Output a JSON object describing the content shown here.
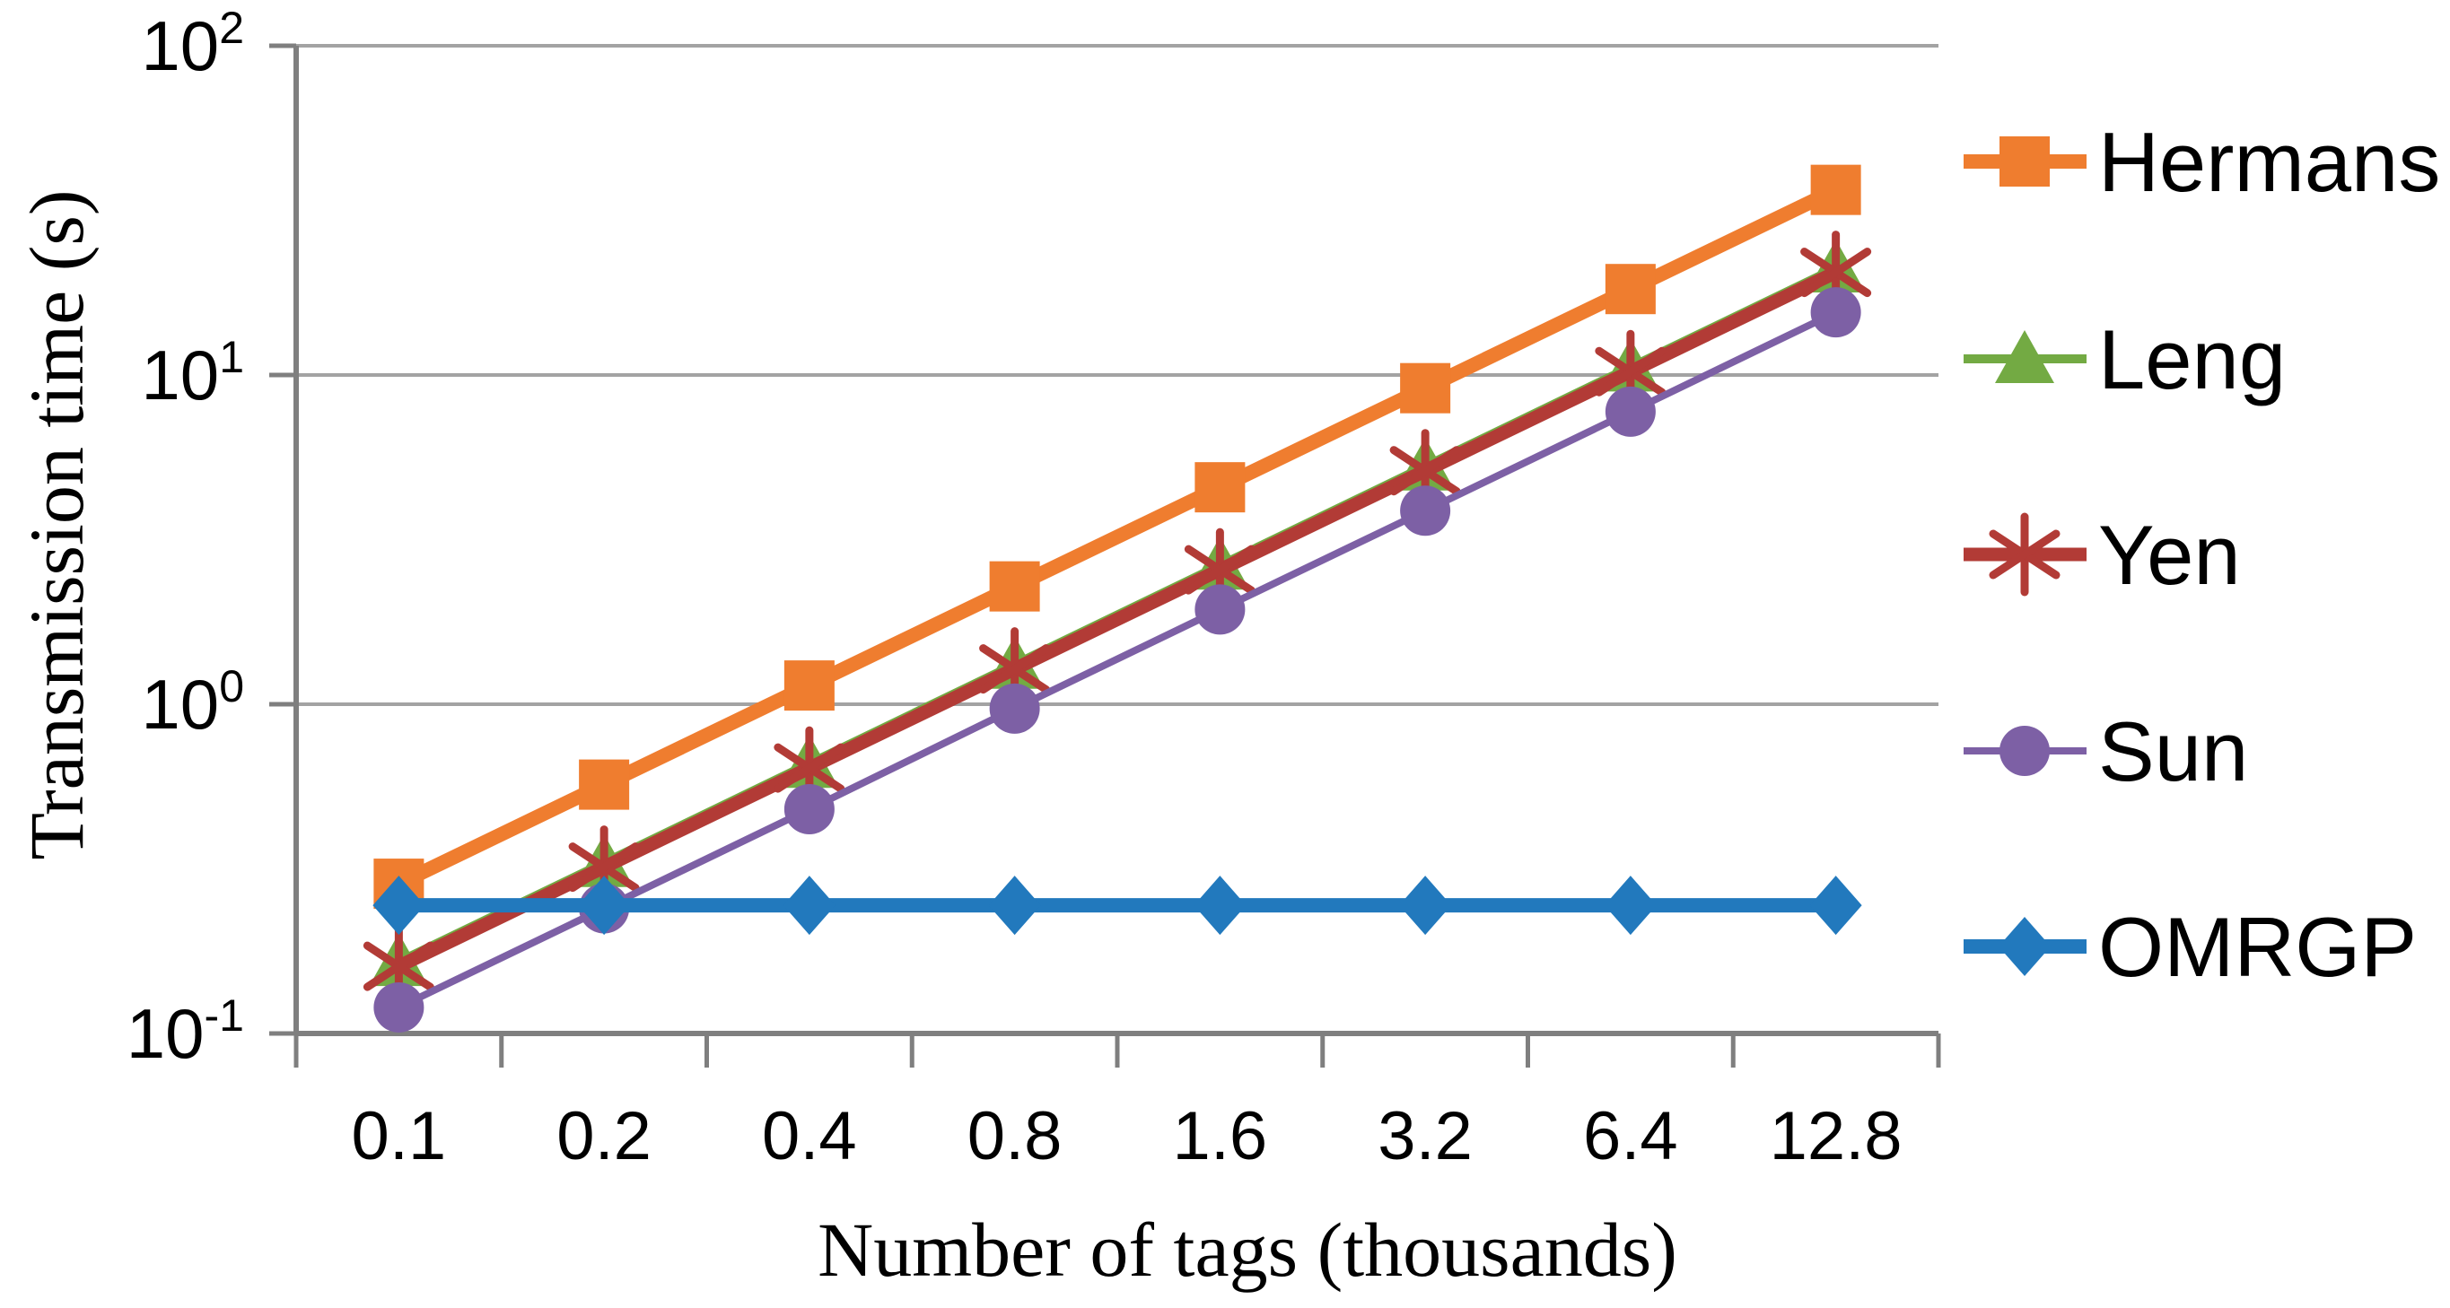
{
  "figure": {
    "background_color": "#ffffff",
    "text_color": "#000000",
    "axis_color": "#7F7F7F",
    "grid_color": "#A3A3A3"
  },
  "chart_data": {
    "type": "line",
    "title": "",
    "xlabel": "Number of tags (thousands)",
    "ylabel": "Transmission time (s)",
    "grid": "horizontal",
    "legend_position": "right",
    "x_axis": {
      "scale": "category",
      "categories": [
        "0.1",
        "0.2",
        "0.4",
        "0.8",
        "1.6",
        "3.2",
        "6.4",
        "12.8"
      ]
    },
    "y_axis": {
      "scale": "log",
      "min": 0.1,
      "max": 100,
      "ticks": [
        {
          "label": "10^2",
          "value": 100
        },
        {
          "label": "10^1",
          "value": 10
        },
        {
          "label": "10^0",
          "value": 1
        },
        {
          "label": "10^-1",
          "value": 0.1
        }
      ]
    },
    "series": [
      {
        "name": "Hermans",
        "color": "#EF7D2F",
        "marker": "square",
        "line_width": 16,
        "values": [
          0.285,
          0.57,
          1.14,
          2.28,
          4.56,
          9.12,
          18.24,
          36.5
        ]
      },
      {
        "name": "Leng",
        "color": "#73AA43",
        "marker": "triangle",
        "line_width": 10,
        "values": [
          0.165,
          0.33,
          0.66,
          1.32,
          2.64,
          5.28,
          10.56,
          21.1
        ]
      },
      {
        "name": "Yen",
        "color": "#B23B36",
        "marker": "asterisk",
        "line_width": 15,
        "values": [
          0.16,
          0.32,
          0.64,
          1.28,
          2.56,
          5.12,
          10.24,
          20.5
        ]
      },
      {
        "name": "Sun",
        "color": "#7D60A5",
        "marker": "circle",
        "line_width": 8,
        "values": [
          0.12,
          0.24,
          0.48,
          0.97,
          1.94,
          3.87,
          7.74,
          15.5
        ]
      },
      {
        "name": "OMRGP",
        "color": "#2279BD",
        "marker": "diamond",
        "line_width": 16,
        "values": [
          0.245,
          0.245,
          0.245,
          0.245,
          0.245,
          0.245,
          0.245,
          0.245
        ]
      }
    ]
  }
}
